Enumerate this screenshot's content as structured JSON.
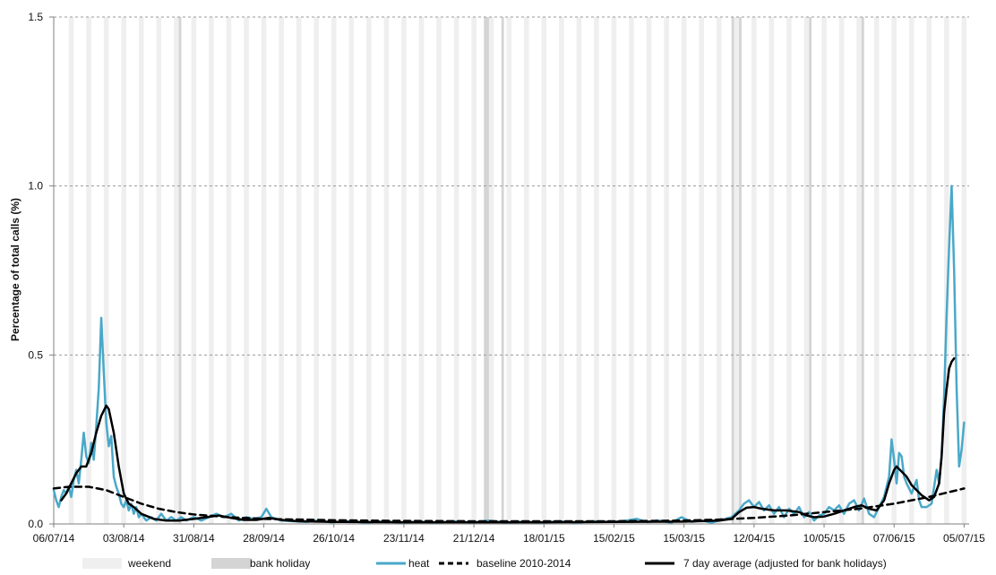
{
  "chart_data": {
    "type": "line",
    "title": "",
    "xlabel": "",
    "ylabel": "Percentage of total calls (%)",
    "ylim": [
      0,
      1.5
    ],
    "yticks": [
      "0.0",
      "0.5",
      "1.0",
      "1.5"
    ],
    "xlim": [
      "2014-07-06",
      "2015-07-07"
    ],
    "xtick_dates": [
      "2014-07-06",
      "2014-08-03",
      "2014-08-31",
      "2014-09-28",
      "2014-10-26",
      "2014-11-23",
      "2014-12-21",
      "2015-01-18",
      "2015-02-15",
      "2015-03-15",
      "2015-04-12",
      "2015-05-10",
      "2015-06-07",
      "2015-07-05"
    ],
    "xticks": [
      "06/07/14",
      "03/08/14",
      "31/08/14",
      "28/09/14",
      "26/10/14",
      "23/11/14",
      "21/12/14",
      "18/01/15",
      "15/02/15",
      "15/03/15",
      "12/04/15",
      "10/05/15",
      "07/06/15",
      "05/07/15"
    ],
    "grid": "horizontal dashed",
    "legend_position": "bottom",
    "legend": [
      {
        "label": "weekend",
        "kind": "band",
        "color": "#efefef"
      },
      {
        "label": "bank holiday",
        "kind": "band",
        "color": "#d4d4d4"
      },
      {
        "label": "heat",
        "kind": "line",
        "color": "#4aa8c8"
      },
      {
        "label": "baseline 2010-2014",
        "kind": "dashed",
        "color": "#000000"
      },
      {
        "label": "7 day average (adjusted for bank holidays)",
        "kind": "line",
        "color": "#000000"
      }
    ],
    "shading": {
      "weekend_first_saturday": "2014-07-12",
      "weekend_last_sunday": "2015-07-05",
      "weekend_color": "#efefef",
      "bank_holiday_color": "#d4d4d4",
      "bank_holidays": [
        "2014-08-25",
        "2014-12-25",
        "2014-12-26",
        "2015-01-01",
        "2015-04-03",
        "2015-04-06",
        "2015-05-04",
        "2015-05-25"
      ]
    },
    "series": [
      {
        "name": "heat",
        "color": "#4aa8c8",
        "points": [
          [
            "2014-07-06",
            0.1
          ],
          [
            "2014-07-07",
            0.07
          ],
          [
            "2014-07-08",
            0.05
          ],
          [
            "2014-07-09",
            0.08
          ],
          [
            "2014-07-10",
            0.1
          ],
          [
            "2014-07-11",
            0.09
          ],
          [
            "2014-07-12",
            0.11
          ],
          [
            "2014-07-13",
            0.08
          ],
          [
            "2014-07-14",
            0.13
          ],
          [
            "2014-07-15",
            0.16
          ],
          [
            "2014-07-16",
            0.12
          ],
          [
            "2014-07-17",
            0.19
          ],
          [
            "2014-07-18",
            0.27
          ],
          [
            "2014-07-19",
            0.2
          ],
          [
            "2014-07-20",
            0.18
          ],
          [
            "2014-07-21",
            0.24
          ],
          [
            "2014-07-22",
            0.19
          ],
          [
            "2014-07-23",
            0.29
          ],
          [
            "2014-07-24",
            0.4
          ],
          [
            "2014-07-25",
            0.61
          ],
          [
            "2014-07-26",
            0.45
          ],
          [
            "2014-07-27",
            0.3
          ],
          [
            "2014-07-28",
            0.23
          ],
          [
            "2014-07-29",
            0.26
          ],
          [
            "2014-07-30",
            0.14
          ],
          [
            "2014-07-31",
            0.11
          ],
          [
            "2014-08-01",
            0.09
          ],
          [
            "2014-08-02",
            0.06
          ],
          [
            "2014-08-03",
            0.05
          ],
          [
            "2014-08-04",
            0.07
          ],
          [
            "2014-08-05",
            0.04
          ],
          [
            "2014-08-06",
            0.06
          ],
          [
            "2014-08-07",
            0.03
          ],
          [
            "2014-08-08",
            0.05
          ],
          [
            "2014-08-09",
            0.02
          ],
          [
            "2014-08-10",
            0.03
          ],
          [
            "2014-08-12",
            0.01
          ],
          [
            "2014-08-14",
            0.02
          ],
          [
            "2014-08-16",
            0.01
          ],
          [
            "2014-08-18",
            0.03
          ],
          [
            "2014-08-20",
            0.01
          ],
          [
            "2014-08-22",
            0.02
          ],
          [
            "2014-08-24",
            0.01
          ],
          [
            "2014-08-26",
            0.02
          ],
          [
            "2014-08-28",
            0.01
          ],
          [
            "2014-08-31",
            0.02
          ],
          [
            "2014-09-03",
            0.01
          ],
          [
            "2014-09-06",
            0.02
          ],
          [
            "2014-09-09",
            0.03
          ],
          [
            "2014-09-12",
            0.02
          ],
          [
            "2014-09-15",
            0.03
          ],
          [
            "2014-09-18",
            0.01
          ],
          [
            "2014-09-21",
            0.02
          ],
          [
            "2014-09-24",
            0.015
          ],
          [
            "2014-09-27",
            0.02
          ],
          [
            "2014-09-29",
            0.045
          ],
          [
            "2014-10-01",
            0.02
          ],
          [
            "2014-10-05",
            0.01
          ],
          [
            "2014-10-10",
            0.008
          ],
          [
            "2014-10-15",
            0.006
          ],
          [
            "2014-10-20",
            0.01
          ],
          [
            "2014-10-25",
            0.005
          ],
          [
            "2014-11-01",
            0.008
          ],
          [
            "2014-11-08",
            0.004
          ],
          [
            "2014-11-15",
            0.008
          ],
          [
            "2014-11-22",
            0.004
          ],
          [
            "2014-11-29",
            0.007
          ],
          [
            "2014-12-06",
            0.004
          ],
          [
            "2014-12-13",
            0.008
          ],
          [
            "2014-12-20",
            0.004
          ],
          [
            "2014-12-27",
            0.01
          ],
          [
            "2015-01-03",
            0.004
          ],
          [
            "2015-01-10",
            0.007
          ],
          [
            "2015-01-17",
            0.004
          ],
          [
            "2015-01-24",
            0.008
          ],
          [
            "2015-01-31",
            0.004
          ],
          [
            "2015-02-07",
            0.008
          ],
          [
            "2015-02-14",
            0.006
          ],
          [
            "2015-02-20",
            0.01
          ],
          [
            "2015-02-24",
            0.015
          ],
          [
            "2015-02-28",
            0.006
          ],
          [
            "2015-03-05",
            0.01
          ],
          [
            "2015-03-10",
            0.004
          ],
          [
            "2015-03-14",
            0.02
          ],
          [
            "2015-03-18",
            0.006
          ],
          [
            "2015-03-22",
            0.01
          ],
          [
            "2015-03-26",
            0.004
          ],
          [
            "2015-03-30",
            0.012
          ],
          [
            "2015-04-03",
            0.02
          ],
          [
            "2015-04-06",
            0.04
          ],
          [
            "2015-04-08",
            0.06
          ],
          [
            "2015-04-10",
            0.07
          ],
          [
            "2015-04-12",
            0.05
          ],
          [
            "2015-04-14",
            0.065
          ],
          [
            "2015-04-16",
            0.04
          ],
          [
            "2015-04-18",
            0.055
          ],
          [
            "2015-04-20",
            0.03
          ],
          [
            "2015-04-22",
            0.05
          ],
          [
            "2015-04-24",
            0.02
          ],
          [
            "2015-04-26",
            0.045
          ],
          [
            "2015-04-28",
            0.03
          ],
          [
            "2015-04-30",
            0.05
          ],
          [
            "2015-05-02",
            0.02
          ],
          [
            "2015-05-04",
            0.035
          ],
          [
            "2015-05-06",
            0.01
          ],
          [
            "2015-05-08",
            0.025
          ],
          [
            "2015-05-10",
            0.03
          ],
          [
            "2015-05-12",
            0.05
          ],
          [
            "2015-05-14",
            0.04
          ],
          [
            "2015-05-16",
            0.055
          ],
          [
            "2015-05-18",
            0.03
          ],
          [
            "2015-05-20",
            0.06
          ],
          [
            "2015-05-22",
            0.07
          ],
          [
            "2015-05-24",
            0.04
          ],
          [
            "2015-05-26",
            0.075
          ],
          [
            "2015-05-28",
            0.03
          ],
          [
            "2015-05-30",
            0.02
          ],
          [
            "2015-06-01",
            0.05
          ],
          [
            "2015-06-03",
            0.08
          ],
          [
            "2015-06-05",
            0.14
          ],
          [
            "2015-06-06",
            0.25
          ],
          [
            "2015-06-07",
            0.19
          ],
          [
            "2015-06-08",
            0.12
          ],
          [
            "2015-06-09",
            0.21
          ],
          [
            "2015-06-10",
            0.2
          ],
          [
            "2015-06-11",
            0.14
          ],
          [
            "2015-06-12",
            0.12
          ],
          [
            "2015-06-14",
            0.09
          ],
          [
            "2015-06-16",
            0.13
          ],
          [
            "2015-06-17",
            0.07
          ],
          [
            "2015-06-18",
            0.05
          ],
          [
            "2015-06-20",
            0.05
          ],
          [
            "2015-06-22",
            0.06
          ],
          [
            "2015-06-24",
            0.16
          ],
          [
            "2015-06-25",
            0.12
          ],
          [
            "2015-06-26",
            0.2
          ],
          [
            "2015-06-27",
            0.38
          ],
          [
            "2015-06-28",
            0.62
          ],
          [
            "2015-06-29",
            0.82
          ],
          [
            "2015-06-30",
            1.0
          ],
          [
            "2015-07-01",
            0.75
          ],
          [
            "2015-07-02",
            0.4
          ],
          [
            "2015-07-03",
            0.17
          ],
          [
            "2015-07-04",
            0.22
          ],
          [
            "2015-07-05",
            0.3
          ]
        ]
      },
      {
        "name": "baseline 2010-2014",
        "color": "#000000",
        "dashed": true,
        "points": [
          [
            "2014-07-06",
            0.105
          ],
          [
            "2014-07-12",
            0.11
          ],
          [
            "2014-07-20",
            0.11
          ],
          [
            "2014-07-27",
            0.1
          ],
          [
            "2014-08-03",
            0.08
          ],
          [
            "2014-08-10",
            0.06
          ],
          [
            "2014-08-17",
            0.045
          ],
          [
            "2014-08-24",
            0.035
          ],
          [
            "2014-08-31",
            0.028
          ],
          [
            "2014-09-14",
            0.02
          ],
          [
            "2014-09-28",
            0.015
          ],
          [
            "2014-10-26",
            0.011
          ],
          [
            "2014-11-23",
            0.009
          ],
          [
            "2014-12-21",
            0.008
          ],
          [
            "2015-01-18",
            0.008
          ],
          [
            "2015-02-15",
            0.008
          ],
          [
            "2015-03-15",
            0.01
          ],
          [
            "2015-03-29",
            0.013
          ],
          [
            "2015-04-12",
            0.018
          ],
          [
            "2015-04-26",
            0.025
          ],
          [
            "2015-05-10",
            0.035
          ],
          [
            "2015-05-24",
            0.045
          ],
          [
            "2015-06-07",
            0.06
          ],
          [
            "2015-06-21",
            0.08
          ],
          [
            "2015-07-05",
            0.105
          ]
        ]
      },
      {
        "name": "7 day average (adjusted for bank holidays)",
        "color": "#000000",
        "points": [
          [
            "2014-07-09",
            0.07
          ],
          [
            "2014-07-11",
            0.09
          ],
          [
            "2014-07-13",
            0.12
          ],
          [
            "2014-07-15",
            0.15
          ],
          [
            "2014-07-17",
            0.17
          ],
          [
            "2014-07-19",
            0.17
          ],
          [
            "2014-07-21",
            0.21
          ],
          [
            "2014-07-23",
            0.27
          ],
          [
            "2014-07-25",
            0.32
          ],
          [
            "2014-07-27",
            0.35
          ],
          [
            "2014-07-28",
            0.34
          ],
          [
            "2014-07-30",
            0.27
          ],
          [
            "2014-08-01",
            0.17
          ],
          [
            "2014-08-03",
            0.09
          ],
          [
            "2014-08-05",
            0.06
          ],
          [
            "2014-08-07",
            0.05
          ],
          [
            "2014-08-10",
            0.03
          ],
          [
            "2014-08-15",
            0.015
          ],
          [
            "2014-08-20",
            0.01
          ],
          [
            "2014-08-25",
            0.01
          ],
          [
            "2014-08-31",
            0.015
          ],
          [
            "2014-09-05",
            0.02
          ],
          [
            "2014-09-10",
            0.025
          ],
          [
            "2014-09-15",
            0.018
          ],
          [
            "2014-09-20",
            0.012
          ],
          [
            "2014-09-25",
            0.012
          ],
          [
            "2014-09-30",
            0.018
          ],
          [
            "2014-10-05",
            0.012
          ],
          [
            "2014-10-12",
            0.008
          ],
          [
            "2014-10-26",
            0.006
          ],
          [
            "2014-11-23",
            0.005
          ],
          [
            "2014-12-21",
            0.005
          ],
          [
            "2015-01-18",
            0.005
          ],
          [
            "2015-02-15",
            0.006
          ],
          [
            "2015-03-15",
            0.007
          ],
          [
            "2015-03-29",
            0.01
          ],
          [
            "2015-04-03",
            0.015
          ],
          [
            "2015-04-06",
            0.035
          ],
          [
            "2015-04-09",
            0.048
          ],
          [
            "2015-04-12",
            0.05
          ],
          [
            "2015-04-15",
            0.045
          ],
          [
            "2015-04-20",
            0.04
          ],
          [
            "2015-04-25",
            0.04
          ],
          [
            "2015-04-30",
            0.035
          ],
          [
            "2015-05-03",
            0.025
          ],
          [
            "2015-05-06",
            0.02
          ],
          [
            "2015-05-10",
            0.022
          ],
          [
            "2015-05-14",
            0.03
          ],
          [
            "2015-05-18",
            0.04
          ],
          [
            "2015-05-22",
            0.05
          ],
          [
            "2015-05-25",
            0.055
          ],
          [
            "2015-05-28",
            0.045
          ],
          [
            "2015-05-31",
            0.04
          ],
          [
            "2015-06-03",
            0.07
          ],
          [
            "2015-06-05",
            0.12
          ],
          [
            "2015-06-07",
            0.16
          ],
          [
            "2015-06-08",
            0.17
          ],
          [
            "2015-06-10",
            0.155
          ],
          [
            "2015-06-12",
            0.14
          ],
          [
            "2015-06-14",
            0.115
          ],
          [
            "2015-06-16",
            0.1
          ],
          [
            "2015-06-18",
            0.085
          ],
          [
            "2015-06-21",
            0.07
          ],
          [
            "2015-06-23",
            0.08
          ],
          [
            "2015-06-25",
            0.12
          ],
          [
            "2015-06-26",
            0.2
          ],
          [
            "2015-06-27",
            0.33
          ],
          [
            "2015-06-28",
            0.4
          ],
          [
            "2015-06-29",
            0.46
          ],
          [
            "2015-06-30",
            0.48
          ],
          [
            "2015-07-01",
            0.49
          ]
        ]
      }
    ]
  }
}
